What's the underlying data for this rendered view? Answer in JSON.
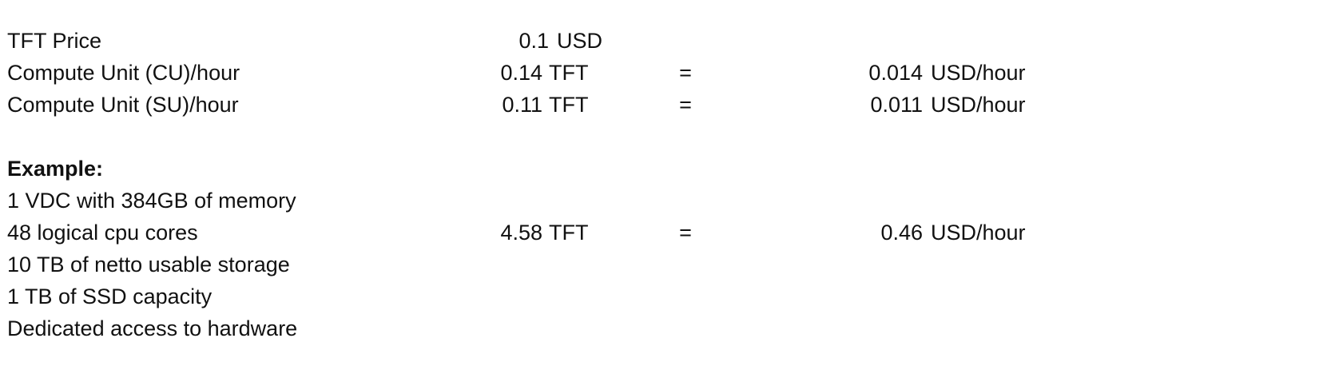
{
  "rows": [
    {
      "label": "TFT Price",
      "value": "0.1",
      "unit": "USD",
      "equals": "",
      "usd_value": "",
      "usd_unit": ""
    },
    {
      "label": "Compute Unit (CU)/hour",
      "value": "0.14",
      "unit": "TFT",
      "equals": "=",
      "usd_value": "0.014",
      "usd_unit": "USD/hour"
    },
    {
      "label": "Compute Unit (SU)/hour",
      "value": "0.11",
      "unit": "TFT",
      "equals": "=",
      "usd_value": "0.011",
      "usd_unit": "USD/hour"
    }
  ],
  "example": {
    "heading": "Example:",
    "lines": [
      "1 VDC with 384GB of memory",
      "48 logical cpu cores",
      "10 TB of netto usable storage",
      "1 TB of SSD capacity",
      "Dedicated access to hardware"
    ],
    "value": "4.58",
    "unit": "TFT",
    "equals": "=",
    "usd_value": "0.46",
    "usd_unit": "USD/hour"
  }
}
